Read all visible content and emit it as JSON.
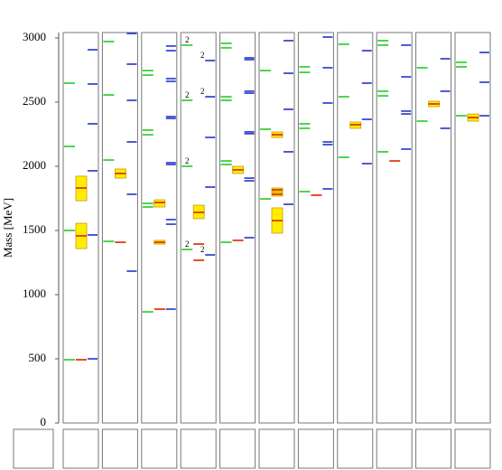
{
  "chart_data": {
    "type": "levels",
    "ylabel": "Mass [MeV]",
    "ylim": [
      0,
      3000
    ],
    "yticks": [
      0,
      500,
      1000,
      1500,
      2000,
      2500,
      3000
    ],
    "colors": {
      "green": "#22cc22",
      "red": "#dd2200",
      "blue": "#2233cc",
      "box": "#ffee00",
      "box_edge": "#c89a00"
    },
    "panels": [
      {
        "green": [
          2648,
          2155,
          1500,
          493
        ],
        "red": [
          493
        ],
        "boxes": [
          {
            "range": [
              1732,
              1923
            ],
            "value": 1831
          },
          {
            "range": [
              1359,
              1556
            ],
            "value": 1458
          }
        ],
        "blue": [
          2908,
          2641,
          2331,
          1965,
          1465,
          500
        ]
      },
      {
        "green": [
          2972,
          2556,
          2049,
          1415
        ],
        "red": [
          1408
        ],
        "boxes": [
          {
            "range": [
              1908,
              1979
            ],
            "value": 1944
          }
        ],
        "blue": [
          3035,
          2796,
          2514,
          2190,
          1782,
          1183
        ]
      },
      {
        "green": [
          2746,
          2711,
          2282,
          2246,
          1711,
          1683,
          866
        ],
        "red": [
          887
        ],
        "boxes": [
          {
            "range": [
              1683,
              1739
            ],
            "value": 1718
          },
          {
            "range": [
              1394,
              1423
            ],
            "value": 1408
          }
        ],
        "blue": [
          2937,
          2901,
          2683,
          2662,
          2387,
          2373,
          2028,
          2014,
          1585,
          1549,
          887
        ]
      },
      {
        "green": [
          {
            "mass": 2944,
            "mult": 2
          },
          {
            "mass": 2514,
            "mult": 2
          },
          {
            "mass": 2000,
            "mult": 2
          },
          {
            "mass": 1352,
            "mult": 2
          }
        ],
        "red": [
          1394,
          1268
        ],
        "boxes": [
          {
            "range": [
              1592,
              1697
            ],
            "value": 1641
          }
        ],
        "blue": [
          {
            "mass": 2824,
            "mult": 2
          },
          {
            "mass": 2542,
            "mult": 2
          },
          2225,
          1838,
          {
            "mass": 1310,
            "mult": 2
          }
        ]
      },
      {
        "green": [
          2958,
          2923,
          2542,
          2514,
          2042,
          2014,
          1408
        ],
        "red": [
          1423
        ],
        "boxes": [
          {
            "range": [
              1944,
              2000
            ],
            "value": 1972
          }
        ],
        "blue": [
          2845,
          2831,
          2585,
          2570,
          2268,
          2254,
          1908,
          1887,
          1444
        ]
      },
      {
        "green": [
          2746,
          2289,
          1746
        ],
        "red": [],
        "boxes": [
          {
            "range": [
              2225,
              2268
            ],
            "value": 2246
          },
          {
            "range": [
              1803,
              1831
            ],
            "value": 1817
          },
          {
            "range": [
              1768,
              1796
            ],
            "value": 1782
          },
          {
            "range": [
              1479,
              1676
            ],
            "value": 1577
          }
        ],
        "blue": [
          2979,
          2725,
          2444,
          2113,
          1704
        ]
      },
      {
        "green": [
          2775,
          2732,
          2331,
          2296,
          1803
        ],
        "red": [
          1775
        ],
        "boxes": [],
        "blue": [
          3007,
          2768,
          2493,
          2190,
          2169,
          1824
        ]
      },
      {
        "green": [
          2951,
          2542,
          2070
        ],
        "red": [],
        "boxes": [
          {
            "range": [
              2296,
              2345
            ],
            "value": 2324
          }
        ],
        "blue": [
          2901,
          2648,
          2366,
          2021
        ]
      },
      {
        "green": [
          2979,
          2944,
          2585,
          2549,
          2113
        ],
        "red": [
          2042
        ],
        "boxes": [],
        "blue": [
          2944,
          2697,
          2430,
          2408,
          2134
        ]
      },
      {
        "green": [
          2768,
          2352
        ],
        "red": [],
        "boxes": [
          {
            "range": [
              2465,
              2507
            ],
            "value": 2486
          }
        ],
        "blue": [
          2838,
          2585,
          2296
        ]
      },
      {
        "green": [
          2810,
          2775,
          2394
        ],
        "red": [],
        "boxes": [
          {
            "range": [
              2352,
              2408
            ],
            "value": 2380
          }
        ],
        "blue": [
          2887,
          2655,
          2394
        ]
      }
    ]
  }
}
